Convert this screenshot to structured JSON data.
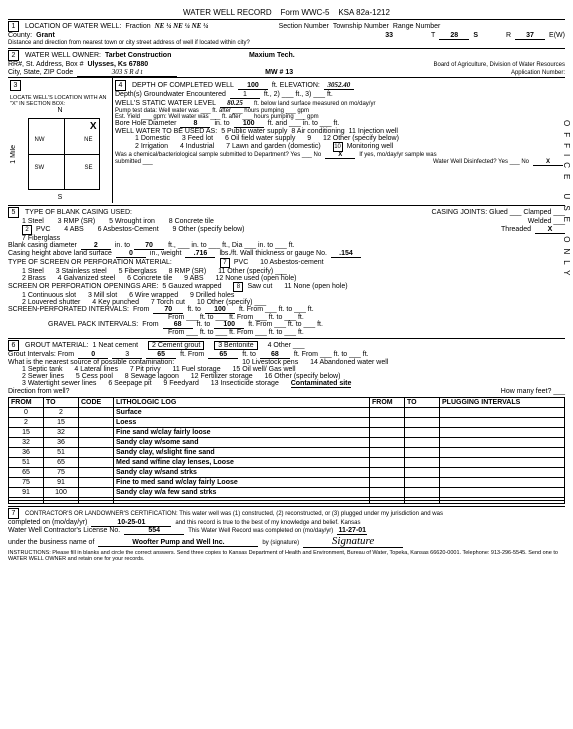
{
  "form": {
    "title": "WATER WELL RECORD",
    "formno": "Form WWC-5",
    "ksa": "KSA 82a-1212"
  },
  "loc": {
    "county": "Grant",
    "fraction": "NE ¼  NE ¼  NE ¼",
    "section": "33",
    "township": "28",
    "twp_dir": "S",
    "range": "37",
    "rng_dir": "E(W)",
    "dist_label": "Distance and direction from nearest town or city street address of well if located within city?"
  },
  "owner": {
    "name": "Tarbet Construction",
    "driller": "Maxium Tech.",
    "addr": "Ulysses, Ks  67880",
    "zip": "303 S R d t",
    "mw": "MW # 13",
    "board": "Board of Agriculture, Division of Water Resources",
    "appno": "Application Number:"
  },
  "sec3": {
    "title": "LOCATE WELL'S LOCATION WITH AN \"X\" IN SECTION BOX:",
    "n": "N",
    "s": "S",
    "miles": "1 Mile",
    "nw": "NW",
    "ne": "NE",
    "sw": "SW",
    "se": "SE"
  },
  "depth": {
    "completed": "100",
    "elev": "3052.40",
    "gw_enc": "1",
    "static": "80.25",
    "static_lbl": "ft. below land surface measured on mo/day/yr",
    "bore": "8",
    "bore_to": "100"
  },
  "use": {
    "o1": "1  Domestic",
    "o2": "3  Feed lot",
    "o3": "5  Public water supply",
    "o4": "6  Oil field water supply",
    "o5": "8  Air conditioning",
    "o6": "11  Injection well",
    "o7": "2  Irrigation",
    "o8": "4  Industrial",
    "o9": "7  Lawn and garden (domestic)",
    "o10": "10",
    "o10t": "Monitoring well",
    "o11": "9",
    "o12": "12  Other (specify below)"
  },
  "bact": {
    "q": "Was a chemical/bacteriological sample submitted to Department? Yes ___ No",
    "x": "X",
    "disinf": "Water Well Disinfected?   Yes ___   No",
    "x2": "X"
  },
  "casing": {
    "title": "TYPE OF BLANK CASING USED:",
    "o1": "1  Steel",
    "o2": "3  RMP (SR)",
    "o3": "5  Wrought iron",
    "o4": "8  Concrete tile",
    "o5": "2",
    "o5t": "PVC",
    "o6": "4  ABS",
    "o7": "6  Asbestos-Cement",
    "o8": "9  Other (specify below)",
    "o9": "7  Fiberglass",
    "joints": "CASING JOINTS:   Glued ___  Clamped ___",
    "joints2": "Welded ___",
    "joints3": "Threaded",
    "jx": "X",
    "diam": "2",
    "diam_to": "70",
    "height": "0",
    "weight": ".716",
    "thick": ".154"
  },
  "screen": {
    "title": "TYPE OF SCREEN OR PERFORATION MATERIAL:",
    "o1": "1  Steel",
    "o2": "3  Stainless steel",
    "o3": "5  Fiberglass",
    "o4": "7",
    "o4t": "PVC",
    "o5": "8  RMP (SR)",
    "o6": "10  Asbestos-cement",
    "o7": "2  Brass",
    "o8": "4  Galvanized steel",
    "o9": "6  Concrete tile",
    "o10": "9  ABS",
    "o11": "11  Other (specify) ___",
    "o12": "12  None used (open hole)"
  },
  "open": {
    "title": "SCREEN OR PERFORATION OPENINGS ARE:",
    "o1": "1  Continuous slot",
    "o2": "3  Mill slot",
    "o3": "5  Gauzed wrapped",
    "o4": "8",
    "o4t": "Saw cut",
    "o5": "11  None (open hole)",
    "o6": "2  Louvered shutter",
    "o7": "4  Key punched",
    "o8": "6  Wire wrapped",
    "o9": "7  Torch cut",
    "o10": "9  Drilled holes",
    "o11": "10  Other (specify) ___"
  },
  "perfint": {
    "label": "SCREEN-PERFORATED INTERVALS:",
    "f1": "70",
    "t1": "100"
  },
  "gravel": {
    "label": "GRAVEL PACK INTERVALS:",
    "f1": "68",
    "t1": "100"
  },
  "grout": {
    "title": "GROUT MATERIAL:",
    "o1": "1  Neat cement",
    "o2": "2  Cement grout",
    "o3": "3  Bentonite",
    "o4": "4  Other ___",
    "f": "0",
    "d": "3",
    "t": "65",
    "f2": "65",
    "t2": "68"
  },
  "contam": {
    "q": "What is the nearest source of possible contamination:",
    "o1": "1  Septic tank",
    "o2": "4  Lateral lines",
    "o3": "7  Pit privy",
    "o4": "10  Livestock pens",
    "o5": "14  Abandoned water well",
    "o6": "2  Sewer lines",
    "o7": "5  Cess pool",
    "o8": "8  Sewage lagoon",
    "o9": "11  Fuel storage",
    "o10": "15  Oil well/ Gas well",
    "o11": "3  Watertight sewer lines",
    "o12": "6  Seepage pit",
    "o13": "9  Feedyard",
    "o14": "12  Fertilizer storage",
    "o15": "16  Other (specify below)",
    "o16": "13  Insecticide storage",
    "site": "Contaminated site",
    "dir": "Direction from well?",
    "many": "How many feet? ___"
  },
  "log": {
    "h1": "FROM",
    "h2": "TO",
    "h3": "CODE",
    "h4": "LITHOLOGIC LOG",
    "h5": "FROM",
    "h6": "TO",
    "h7": "PLUGGING INTERVALS",
    "rows": [
      [
        "0",
        "2",
        "",
        "Surface"
      ],
      [
        "2",
        "15",
        "",
        "Loess"
      ],
      [
        "15",
        "32",
        "",
        "Fine sand w/clay fairly loose"
      ],
      [
        "32",
        "36",
        "",
        "Sandy clay w/some sand"
      ],
      [
        "36",
        "51",
        "",
        "Sandy clay, w/slight fine sand"
      ],
      [
        "51",
        "65",
        "",
        "Med sand w/fine clay lenses, Loose"
      ],
      [
        "65",
        "75",
        "",
        "Sandy clay w/sand strks"
      ],
      [
        "75",
        "91",
        "",
        "Fine to med sand w/clay fairly Loose"
      ],
      [
        "91",
        "100",
        "",
        "Sandy clay w/a few sand strks"
      ],
      [
        "",
        "",
        "",
        ""
      ],
      [
        "",
        "",
        "",
        ""
      ]
    ]
  },
  "cert": {
    "title": "CONTRACTOR'S OR LANDOWNER'S CERTIFICATION:  This water well was (1) constructed, (2) reconstructed, or (3) plugged under my jurisdiction and was",
    "date": "10-25-01",
    "lic": "554",
    "recdate": "11-27-01",
    "biz": "Woofter Pump and Well Inc.",
    "instr": "INSTRUCTIONS:  Please fill in blanks and circle the correct answers.  Send three copies to Kansas Department of Health and Environment, Bureau of Water, Topeka, Kansas 66620-0001.  Telephone: 913-296-5545.  Send one to WATER WELL OWNER and retain one for your records."
  },
  "side": "OFFICE USE ONLY"
}
